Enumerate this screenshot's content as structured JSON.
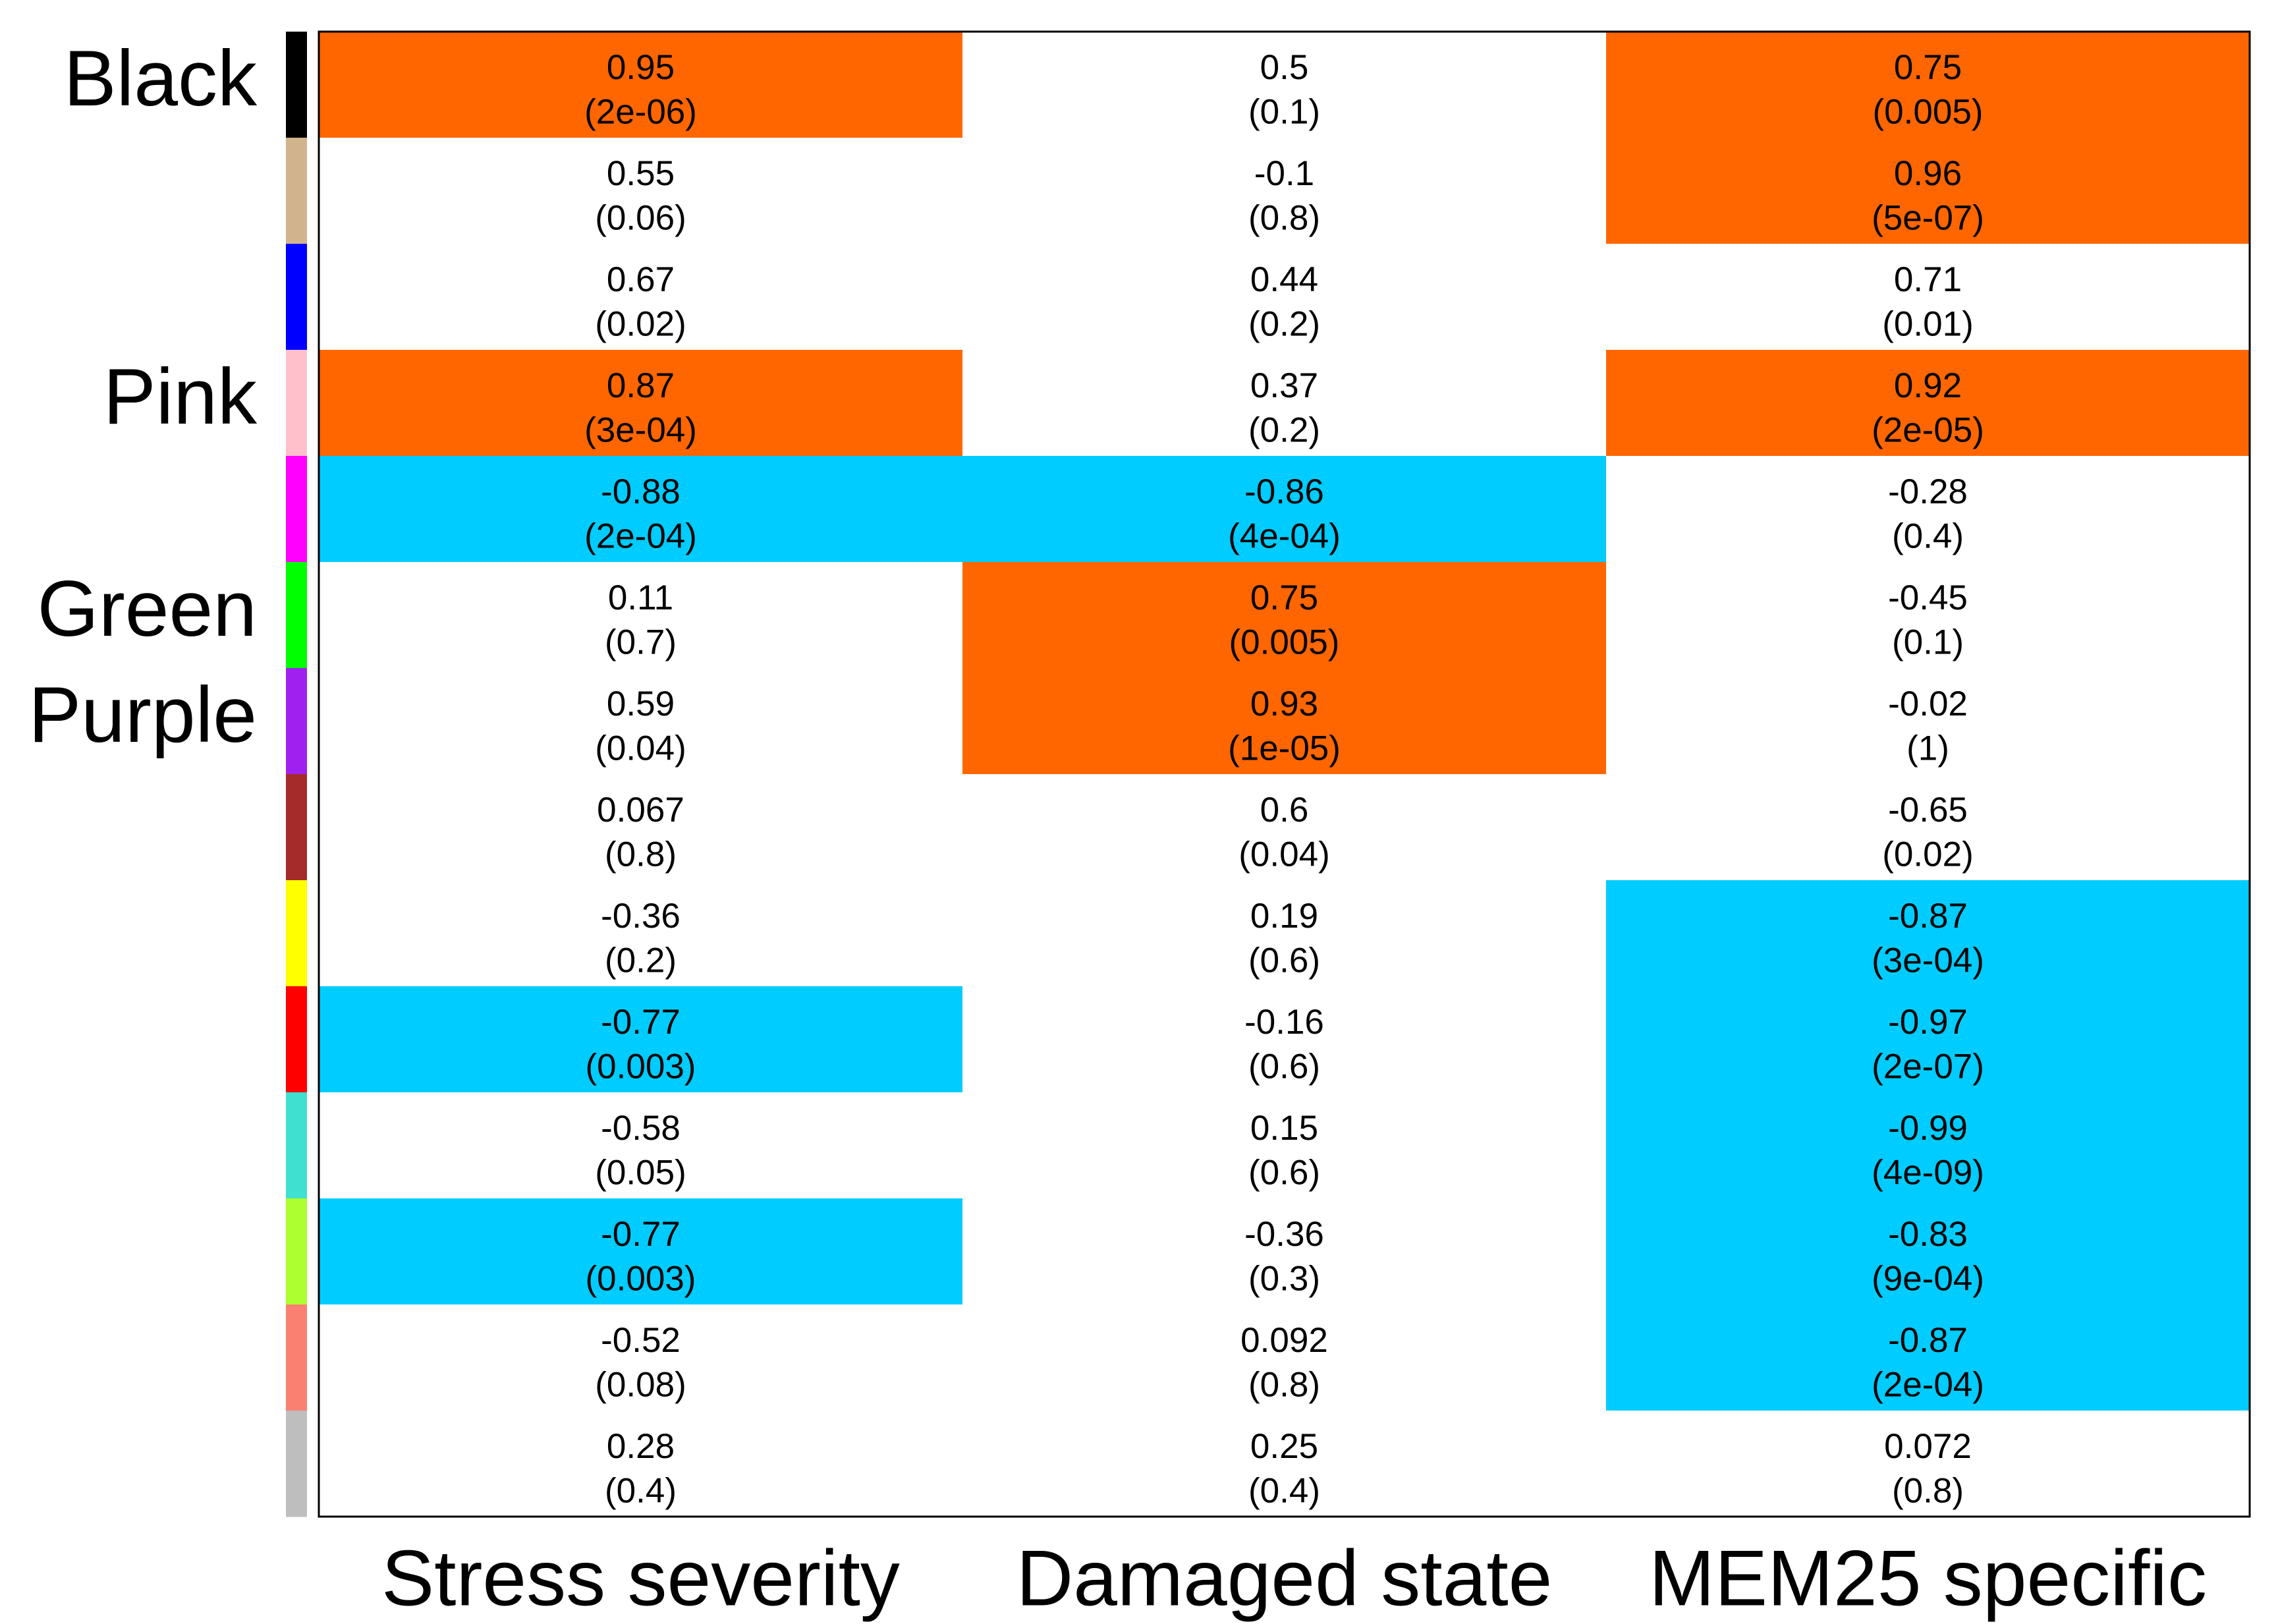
{
  "chart_data": {
    "type": "heatmap",
    "columns": [
      "Stress severity",
      "Damaged state",
      "MEM25 specific"
    ],
    "row_labels": [
      "Black",
      "",
      "",
      "Pink",
      "",
      "Green",
      "Purple",
      "",
      "",
      "",
      "",
      "",
      "",
      ""
    ],
    "module_colors": [
      "#000000",
      "#d2b48c",
      "#0000ff",
      "#ffc0cb",
      "#ff00ff",
      "#00ff00",
      "#a020f0",
      "#a52a2a",
      "#ffff00",
      "#ff0000",
      "#40e0d0",
      "#adff2f",
      "#fa8072",
      "#bebebe"
    ],
    "highlight_colors": {
      "positive": "#ff6600",
      "negative": "#00ccff",
      "none": "#ffffff"
    },
    "cells": [
      [
        {
          "r": "0.95",
          "p": "(2e-06)",
          "hl": "positive"
        },
        {
          "r": "0.5",
          "p": "(0.1)",
          "hl": "none"
        },
        {
          "r": "0.75",
          "p": "(0.005)",
          "hl": "positive"
        }
      ],
      [
        {
          "r": "0.55",
          "p": "(0.06)",
          "hl": "none"
        },
        {
          "r": "-0.1",
          "p": "(0.8)",
          "hl": "none"
        },
        {
          "r": "0.96",
          "p": "(5e-07)",
          "hl": "positive"
        }
      ],
      [
        {
          "r": "0.67",
          "p": "(0.02)",
          "hl": "none"
        },
        {
          "r": "0.44",
          "p": "(0.2)",
          "hl": "none"
        },
        {
          "r": "0.71",
          "p": "(0.01)",
          "hl": "none"
        }
      ],
      [
        {
          "r": "0.87",
          "p": "(3e-04)",
          "hl": "positive"
        },
        {
          "r": "0.37",
          "p": "(0.2)",
          "hl": "none"
        },
        {
          "r": "0.92",
          "p": "(2e-05)",
          "hl": "positive"
        }
      ],
      [
        {
          "r": "-0.88",
          "p": "(2e-04)",
          "hl": "negative"
        },
        {
          "r": "-0.86",
          "p": "(4e-04)",
          "hl": "negative"
        },
        {
          "r": "-0.28",
          "p": "(0.4)",
          "hl": "none"
        }
      ],
      [
        {
          "r": "0.11",
          "p": "(0.7)",
          "hl": "none"
        },
        {
          "r": "0.75",
          "p": "(0.005)",
          "hl": "positive"
        },
        {
          "r": "-0.45",
          "p": "(0.1)",
          "hl": "none"
        }
      ],
      [
        {
          "r": "0.59",
          "p": "(0.04)",
          "hl": "none"
        },
        {
          "r": "0.93",
          "p": "(1e-05)",
          "hl": "positive"
        },
        {
          "r": "-0.02",
          "p": "(1)",
          "hl": "none"
        }
      ],
      [
        {
          "r": "0.067",
          "p": "(0.8)",
          "hl": "none"
        },
        {
          "r": "0.6",
          "p": "(0.04)",
          "hl": "none"
        },
        {
          "r": "-0.65",
          "p": "(0.02)",
          "hl": "none"
        }
      ],
      [
        {
          "r": "-0.36",
          "p": "(0.2)",
          "hl": "none"
        },
        {
          "r": "0.19",
          "p": "(0.6)",
          "hl": "none"
        },
        {
          "r": "-0.87",
          "p": "(3e-04)",
          "hl": "negative"
        }
      ],
      [
        {
          "r": "-0.77",
          "p": "(0.003)",
          "hl": "negative"
        },
        {
          "r": "-0.16",
          "p": "(0.6)",
          "hl": "none"
        },
        {
          "r": "-0.97",
          "p": "(2e-07)",
          "hl": "negative"
        }
      ],
      [
        {
          "r": "-0.58",
          "p": "(0.05)",
          "hl": "none"
        },
        {
          "r": "0.15",
          "p": "(0.6)",
          "hl": "none"
        },
        {
          "r": "-0.99",
          "p": "(4e-09)",
          "hl": "negative"
        }
      ],
      [
        {
          "r": "-0.77",
          "p": "(0.003)",
          "hl": "negative"
        },
        {
          "r": "-0.36",
          "p": "(0.3)",
          "hl": "none"
        },
        {
          "r": "-0.83",
          "p": "(9e-04)",
          "hl": "negative"
        }
      ],
      [
        {
          "r": "-0.52",
          "p": "(0.08)",
          "hl": "none"
        },
        {
          "r": "0.092",
          "p": "(0.8)",
          "hl": "none"
        },
        {
          "r": "-0.87",
          "p": "(2e-04)",
          "hl": "negative"
        }
      ],
      [
        {
          "r": "0.28",
          "p": "(0.4)",
          "hl": "none"
        },
        {
          "r": "0.25",
          "p": "(0.4)",
          "hl": "none"
        },
        {
          "r": "0.072",
          "p": "(0.8)",
          "hl": "none"
        }
      ]
    ]
  }
}
